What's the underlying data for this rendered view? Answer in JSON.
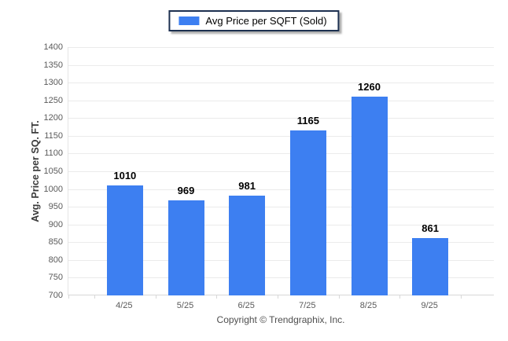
{
  "legend": {
    "label": "Avg Price per SQFT (Sold)",
    "swatch_color": "#3d7ff1",
    "border_color": "#1c3050"
  },
  "footer": {
    "text": "Copyright © Trendgraphix, Inc."
  },
  "chart_data": {
    "type": "bar",
    "title": "Avg Price per SQFT (Sold)",
    "categories": [
      "4/25",
      "5/25",
      "6/25",
      "7/25",
      "8/25",
      "9/25"
    ],
    "values": [
      1010,
      969,
      981,
      1165,
      1260,
      861
    ],
    "xlabel": "",
    "ylabel": "Avg. Price per SQ. FT.",
    "ylim": [
      700,
      1400
    ],
    "yticks": [
      700,
      750,
      800,
      850,
      900,
      950,
      1000,
      1050,
      1100,
      1150,
      1200,
      1250,
      1300,
      1350,
      1400
    ],
    "grid": true,
    "legend_position": "top-center",
    "bar_color": "#3d7ff1",
    "gridline_color": "#ebebeb",
    "axis_color": "#d8d8d8",
    "tick_label_color": "#5a5a5a",
    "value_label_color": "#000000"
  }
}
